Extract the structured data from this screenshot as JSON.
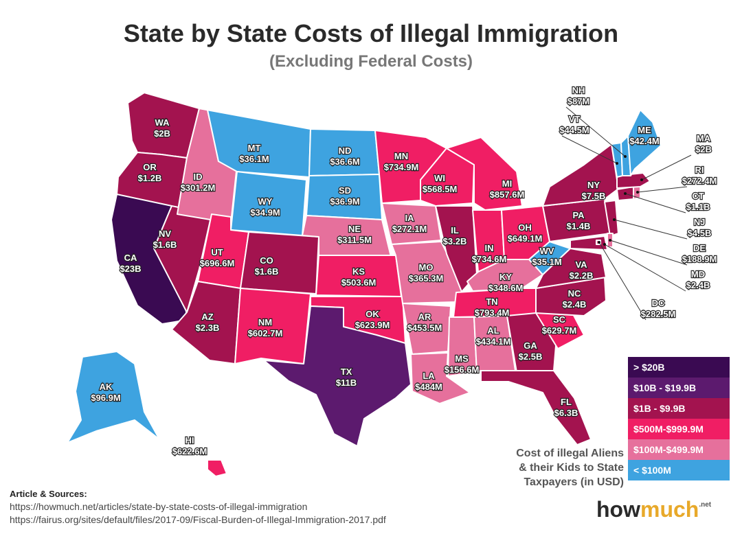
{
  "title": "State by State Costs of Illegal Immigration",
  "subtitle": "(Excluding Federal Costs)",
  "colors": {
    "gt20b": "#3a0a52",
    "10b_19b": "#5c1a6e",
    "1b_9b": "#a3134f",
    "500m_999m": "#f01e64",
    "100m_499m": "#e6709c",
    "lt100m": "#3ea3e0"
  },
  "states": [
    {
      "abbr": "WA",
      "value": "$2B",
      "tier": "1b_9b"
    },
    {
      "abbr": "OR",
      "value": "$1.2B",
      "tier": "1b_9b"
    },
    {
      "abbr": "CA",
      "value": "$23B",
      "tier": "gt20b"
    },
    {
      "abbr": "NV",
      "value": "$1.6B",
      "tier": "1b_9b"
    },
    {
      "abbr": "ID",
      "value": "$301.2M",
      "tier": "100m_499m"
    },
    {
      "abbr": "MT",
      "value": "$36.1M",
      "tier": "lt100m"
    },
    {
      "abbr": "WY",
      "value": "$34.9M",
      "tier": "lt100m"
    },
    {
      "abbr": "UT",
      "value": "$696.6M",
      "tier": "500m_999m"
    },
    {
      "abbr": "AZ",
      "value": "$2.3B",
      "tier": "1b_9b"
    },
    {
      "abbr": "CO",
      "value": "$1.6B",
      "tier": "1b_9b"
    },
    {
      "abbr": "NM",
      "value": "$602.7M",
      "tier": "500m_999m"
    },
    {
      "abbr": "ND",
      "value": "$36.6M",
      "tier": "lt100m"
    },
    {
      "abbr": "SD",
      "value": "$36.9M",
      "tier": "lt100m"
    },
    {
      "abbr": "NE",
      "value": "$311.5M",
      "tier": "100m_499m"
    },
    {
      "abbr": "KS",
      "value": "$503.6M",
      "tier": "500m_999m"
    },
    {
      "abbr": "OK",
      "value": "$623.9M",
      "tier": "500m_999m"
    },
    {
      "abbr": "TX",
      "value": "$11B",
      "tier": "10b_19b"
    },
    {
      "abbr": "MN",
      "value": "$734.9M",
      "tier": "500m_999m"
    },
    {
      "abbr": "IA",
      "value": "$272.1M",
      "tier": "100m_499m"
    },
    {
      "abbr": "MO",
      "value": "$365.3M",
      "tier": "100m_499m"
    },
    {
      "abbr": "AR",
      "value": "$453.5M",
      "tier": "100m_499m"
    },
    {
      "abbr": "LA",
      "value": "$484M",
      "tier": "100m_499m"
    },
    {
      "abbr": "WI",
      "value": "$568.5M",
      "tier": "500m_999m"
    },
    {
      "abbr": "IL",
      "value": "$3.2B",
      "tier": "1b_9b"
    },
    {
      "abbr": "MI",
      "value": "$857.6M",
      "tier": "500m_999m"
    },
    {
      "abbr": "IN",
      "value": "$734.6M",
      "tier": "500m_999m"
    },
    {
      "abbr": "OH",
      "value": "$649.1M",
      "tier": "500m_999m"
    },
    {
      "abbr": "KY",
      "value": "$348.6M",
      "tier": "100m_499m"
    },
    {
      "abbr": "TN",
      "value": "$793.4M",
      "tier": "500m_999m"
    },
    {
      "abbr": "MS",
      "value": "$156.6M",
      "tier": "100m_499m"
    },
    {
      "abbr": "AL",
      "value": "$434.1M",
      "tier": "100m_499m"
    },
    {
      "abbr": "GA",
      "value": "$2.5B",
      "tier": "1b_9b"
    },
    {
      "abbr": "FL",
      "value": "$6.3B",
      "tier": "1b_9b"
    },
    {
      "abbr": "SC",
      "value": "$629.7M",
      "tier": "500m_999m"
    },
    {
      "abbr": "NC",
      "value": "$2.4B",
      "tier": "1b_9b"
    },
    {
      "abbr": "VA",
      "value": "$2.2B",
      "tier": "1b_9b"
    },
    {
      "abbr": "WV",
      "value": "$35.1M",
      "tier": "lt100m"
    },
    {
      "abbr": "PA",
      "value": "$1.4B",
      "tier": "1b_9b"
    },
    {
      "abbr": "NY",
      "value": "$7.5B",
      "tier": "1b_9b"
    },
    {
      "abbr": "ME",
      "value": "$42.4M",
      "tier": "lt100m"
    },
    {
      "abbr": "AK",
      "value": "$96.9M",
      "tier": "lt100m"
    },
    {
      "abbr": "HI",
      "value": "$622.6M",
      "tier": "500m_999m"
    },
    {
      "abbr": "NH",
      "value": "$87M",
      "tier": "lt100m"
    },
    {
      "abbr": "VT",
      "value": "$44.5M",
      "tier": "lt100m"
    },
    {
      "abbr": "MA",
      "value": "$2B",
      "tier": "1b_9b"
    },
    {
      "abbr": "RI",
      "value": "$272.4M",
      "tier": "100m_499m"
    },
    {
      "abbr": "CT",
      "value": "$1.1B",
      "tier": "1b_9b"
    },
    {
      "abbr": "NJ",
      "value": "$4.5B",
      "tier": "1b_9b"
    },
    {
      "abbr": "DE",
      "value": "$188.9M",
      "tier": "100m_499m"
    },
    {
      "abbr": "MD",
      "value": "$2.4B",
      "tier": "1b_9b"
    },
    {
      "abbr": "DC",
      "value": "$282.5M",
      "tier": "100m_499m"
    }
  ],
  "legend": [
    {
      "label": "> $20B",
      "tier": "gt20b"
    },
    {
      "label": "$10B - $19.9B",
      "tier": "10b_19b"
    },
    {
      "label": "$1B - $9.9B",
      "tier": "1b_9b"
    },
    {
      "label": "$500M-$999.9M",
      "tier": "500m_999m"
    },
    {
      "label": "$100M-$499.9M",
      "tier": "100m_499m"
    },
    {
      "label": "< $100M",
      "tier": "lt100m"
    }
  ],
  "caption": [
    "Cost of illegal Aliens",
    "& their Kids to State",
    "Taxpayers (in USD)"
  ],
  "sources": {
    "heading": "Article & Sources:",
    "links": [
      "https://howmuch.net/articles/state-by-state-costs-of-illegal-immigration",
      "https://fairus.org/sites/default/files/2017-09/Fiscal-Burden-of-Illegal-Immigration-2017.pdf"
    ]
  },
  "logo": {
    "part1": "how",
    "part2": "much",
    "suffix": ".net"
  }
}
